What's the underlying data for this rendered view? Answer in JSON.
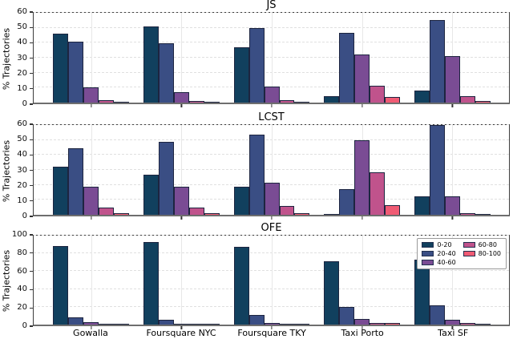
{
  "chart_data": {
    "type": "bar",
    "ylabel": "% Trajectories",
    "categories": [
      "Gowalla",
      "Foursquare NYC",
      "Foursquare TKY",
      "Taxi Porto",
      "Taxi SF"
    ],
    "legend": {
      "labels": [
        "0-20",
        "20-40",
        "40-60",
        "60-80",
        "80-100"
      ],
      "colors": [
        "#11405e",
        "#3a4e84",
        "#7a4c94",
        "#c0538c",
        "#f05b74"
      ],
      "position": "upper right of OFE subplot",
      "columns": 2
    },
    "bar_edge_color": "#1d2540",
    "grid": true,
    "subplots": [
      {
        "title": "JS",
        "ylim": [
          0,
          60
        ],
        "yticks": [
          0,
          10,
          20,
          30,
          40,
          50,
          60
        ],
        "series": [
          {
            "name": "0-20",
            "values": [
              46,
              51,
              37,
              4.5,
              8
            ]
          },
          {
            "name": "20-40",
            "values": [
              40.5,
              39.5,
              50,
              46.5,
              55
            ]
          },
          {
            "name": "40-60",
            "values": [
              10,
              7,
              10.5,
              32,
              31
            ]
          },
          {
            "name": "60-80",
            "values": [
              1.8,
              1.2,
              1.5,
              11.5,
              4.5
            ]
          },
          {
            "name": "80-100",
            "values": [
              0.8,
              0.5,
              0.5,
              4,
              1
            ]
          }
        ]
      },
      {
        "title": "LCST",
        "ylim": [
          0,
          60
        ],
        "yticks": [
          0,
          10,
          20,
          30,
          40,
          50,
          60
        ],
        "series": [
          {
            "name": "0-20",
            "values": [
              32,
              27,
              18.5,
              0.5,
              12.5
            ]
          },
          {
            "name": "20-40",
            "values": [
              44.5,
              48.5,
              53.5,
              17,
              60
            ]
          },
          {
            "name": "40-60",
            "values": [
              18.5,
              19,
              21.5,
              50,
              12.5
            ]
          },
          {
            "name": "60-80",
            "values": [
              5,
              5,
              6,
              28.5,
              1
            ]
          },
          {
            "name": "80-100",
            "values": [
              1,
              1.2,
              1,
              6.5,
              0.3
            ]
          }
        ]
      },
      {
        "title": "OFE",
        "ylim": [
          0,
          100
        ],
        "yticks": [
          0,
          20,
          40,
          60,
          80,
          100
        ],
        "series": [
          {
            "name": "0-20",
            "values": [
              88,
              93,
              87,
              71,
              73
            ]
          },
          {
            "name": "20-40",
            "values": [
              8.5,
              5.5,
              11,
              20,
              22
            ]
          },
          {
            "name": "40-60",
            "values": [
              2.5,
              1,
              2,
              6,
              5.5
            ]
          },
          {
            "name": "60-80",
            "values": [
              0.7,
              0.3,
              0.5,
              1.5,
              1.5
            ]
          },
          {
            "name": "80-100",
            "values": [
              0.5,
              0.2,
              0.2,
              1.5,
              0.5
            ]
          }
        ]
      }
    ]
  }
}
